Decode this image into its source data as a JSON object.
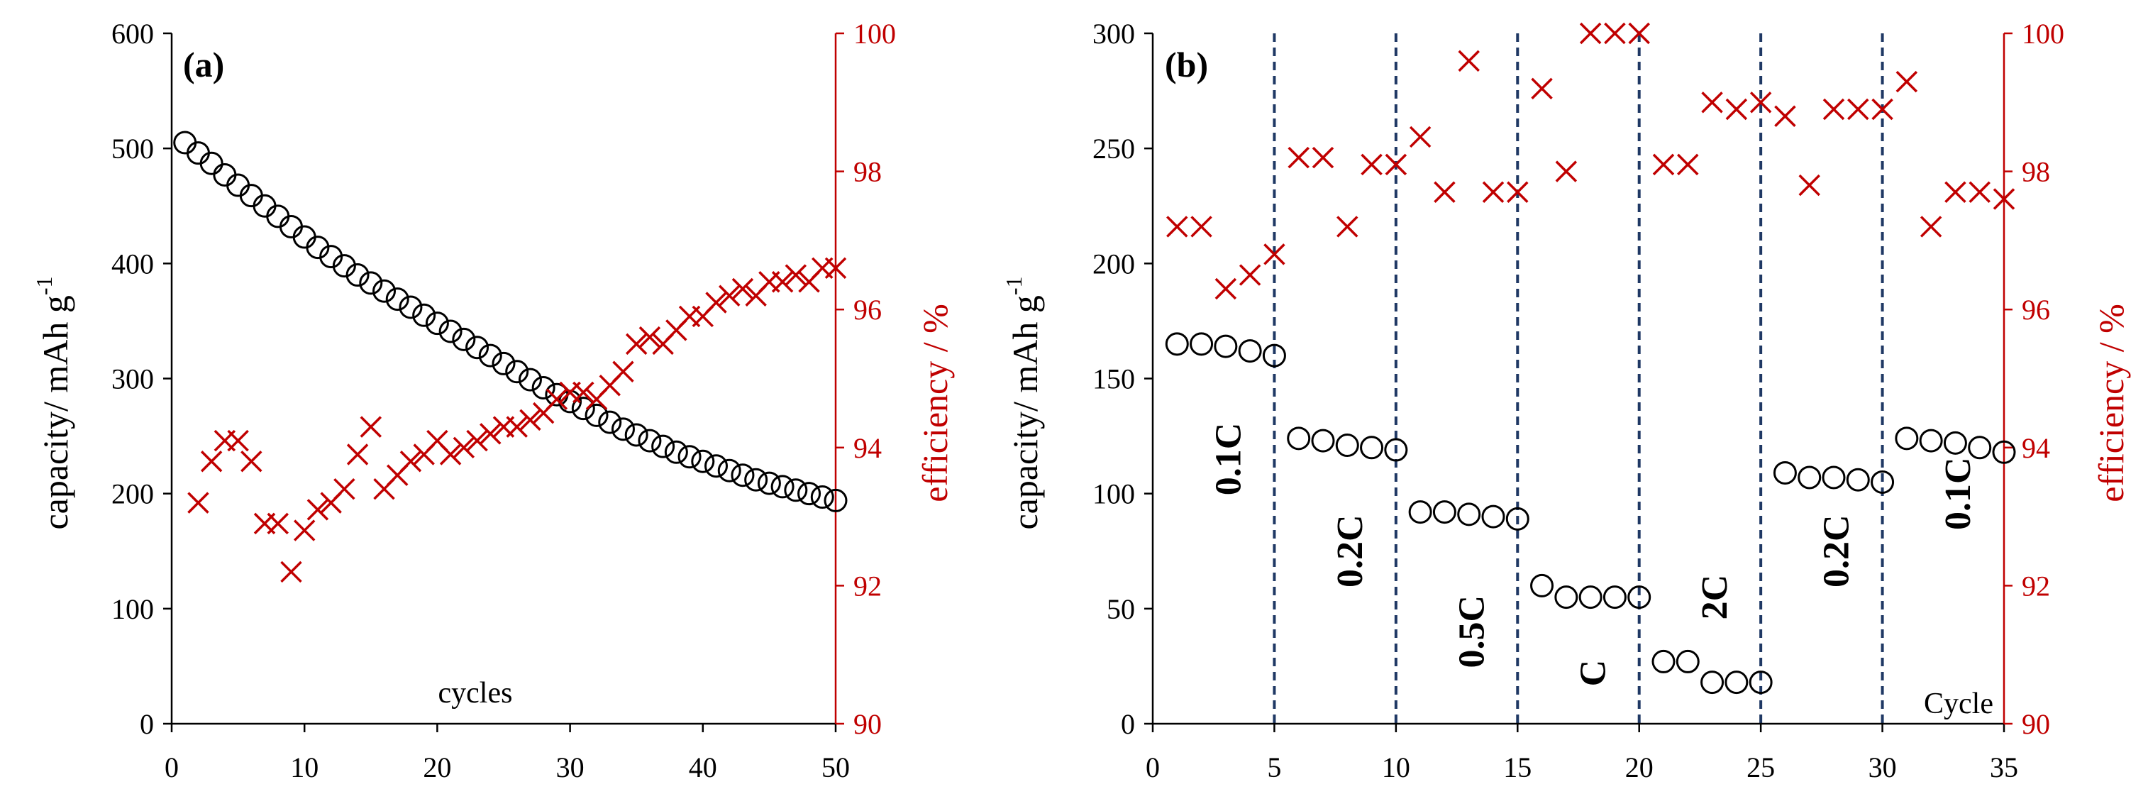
{
  "colors": {
    "capacity": "#000000",
    "efficiency": "#c00000",
    "divider": "#1f3864"
  },
  "chart_data": [
    {
      "id": "a",
      "type": "scatter",
      "panel_label": "(a)",
      "xlabel": "cycles",
      "ylabel": "capacity/ mAh g",
      "ylabel_superscript": "-1",
      "y2label": "efficiency / %",
      "xlim": [
        0,
        50
      ],
      "ylim": [
        0,
        600
      ],
      "y2lim": [
        90,
        100
      ],
      "xticks": [
        0,
        10,
        20,
        30,
        40,
        50
      ],
      "yticks": [
        0,
        100,
        200,
        300,
        400,
        500,
        600
      ],
      "y2ticks": [
        90,
        92,
        94,
        96,
        98,
        100
      ],
      "series": [
        {
          "name": "capacity",
          "axis": "left",
          "marker": "circle",
          "x": [
            1,
            2,
            3,
            4,
            5,
            6,
            7,
            8,
            9,
            10,
            11,
            12,
            13,
            14,
            15,
            16,
            17,
            18,
            19,
            20,
            21,
            22,
            23,
            24,
            25,
            26,
            27,
            28,
            29,
            30,
            31,
            32,
            33,
            34,
            35,
            36,
            37,
            38,
            39,
            40,
            41,
            42,
            43,
            44,
            45,
            46,
            47,
            48,
            49,
            50
          ],
          "y": [
            505,
            496,
            487,
            477,
            468,
            459,
            450,
            441,
            432,
            423,
            414,
            406,
            398,
            390,
            383,
            376,
            369,
            362,
            355,
            348,
            341,
            334,
            327,
            320,
            313,
            306,
            299,
            292,
            286,
            280,
            274,
            268,
            262,
            256,
            251,
            246,
            241,
            236,
            232,
            228,
            224,
            220,
            216,
            212,
            209,
            206,
            203,
            200,
            197,
            194
          ]
        },
        {
          "name": "efficiency",
          "axis": "right",
          "marker": "x",
          "x": [
            2,
            3,
            4,
            5,
            6,
            7,
            8,
            9,
            10,
            11,
            12,
            13,
            14,
            15,
            16,
            17,
            18,
            19,
            20,
            21,
            22,
            23,
            24,
            25,
            26,
            27,
            28,
            29,
            30,
            31,
            32,
            33,
            34,
            35,
            36,
            37,
            38,
            39,
            40,
            41,
            42,
            43,
            44,
            45,
            46,
            47,
            48,
            49,
            50
          ],
          "y": [
            93.2,
            93.8,
            94.1,
            94.1,
            93.8,
            92.9,
            92.9,
            92.2,
            92.8,
            93.1,
            93.2,
            93.4,
            93.9,
            94.3,
            93.4,
            93.6,
            93.8,
            93.9,
            94.1,
            93.9,
            94.0,
            94.1,
            94.2,
            94.3,
            94.3,
            94.4,
            94.5,
            94.7,
            94.8,
            94.8,
            94.7,
            94.9,
            95.1,
            95.5,
            95.6,
            95.5,
            95.7,
            95.9,
            95.9,
            96.1,
            96.2,
            96.3,
            96.2,
            96.4,
            96.4,
            96.5,
            96.4,
            96.6,
            96.6
          ]
        }
      ]
    },
    {
      "id": "b",
      "type": "scatter",
      "panel_label": "(b)",
      "xlabel": "Cycle",
      "ylabel": "capacity/ mAh g",
      "ylabel_superscript": "-1",
      "y2label": "efficiency / %",
      "xlim": [
        0,
        35
      ],
      "ylim": [
        0,
        300
      ],
      "y2lim": [
        90,
        100
      ],
      "xticks": [
        0,
        5,
        10,
        15,
        20,
        25,
        30,
        35
      ],
      "yticks": [
        0,
        50,
        100,
        150,
        200,
        250,
        300
      ],
      "y2ticks": [
        90,
        92,
        94,
        96,
        98,
        100
      ],
      "dividers": [
        5,
        10,
        15,
        20,
        25,
        30
      ],
      "rate_labels": [
        {
          "text": "0.1C",
          "x": 3.6,
          "y": 115
        },
        {
          "text": "0.2C",
          "x": 8.6,
          "y": 75
        },
        {
          "text": "0.5C",
          "x": 13.6,
          "y": 40
        },
        {
          "text": "C",
          "x": 18.6,
          "y": 22
        },
        {
          "text": "2C",
          "x": 23.6,
          "y": 55
        },
        {
          "text": "0.2C",
          "x": 28.6,
          "y": 75
        },
        {
          "text": "0.1C",
          "x": 33.6,
          "y": 100
        }
      ],
      "series": [
        {
          "name": "capacity",
          "axis": "left",
          "marker": "circle",
          "x": [
            1,
            2,
            3,
            4,
            5,
            6,
            7,
            8,
            9,
            10,
            11,
            12,
            13,
            14,
            15,
            16,
            17,
            18,
            19,
            20,
            21,
            22,
            23,
            24,
            25,
            26,
            27,
            28,
            29,
            30,
            31,
            32,
            33,
            34,
            35
          ],
          "y": [
            165,
            165,
            164,
            162,
            160,
            124,
            123,
            121,
            120,
            119,
            92,
            92,
            91,
            90,
            89,
            60,
            55,
            55,
            55,
            55,
            27,
            27,
            18,
            18,
            18,
            109,
            107,
            107,
            106,
            105,
            124,
            123,
            122,
            120,
            118
          ]
        },
        {
          "name": "efficiency",
          "axis": "right",
          "marker": "x",
          "x": [
            1,
            2,
            3,
            4,
            5,
            6,
            7,
            8,
            9,
            10,
            11,
            12,
            13,
            14,
            15,
            16,
            17,
            18,
            19,
            20,
            21,
            22,
            23,
            24,
            25,
            26,
            27,
            28,
            29,
            30,
            31,
            32,
            33,
            34,
            35
          ],
          "y": [
            97.2,
            97.2,
            96.3,
            96.5,
            96.8,
            98.2,
            98.2,
            97.2,
            98.1,
            98.1,
            98.5,
            97.7,
            99.6,
            97.7,
            97.7,
            99.2,
            98.0,
            100.0,
            100.0,
            100.0,
            98.1,
            98.1,
            99.0,
            98.9,
            99.0,
            98.8,
            97.8,
            98.9,
            98.9,
            98.9,
            99.3,
            97.2,
            97.7,
            97.7,
            97.6
          ]
        }
      ]
    }
  ]
}
